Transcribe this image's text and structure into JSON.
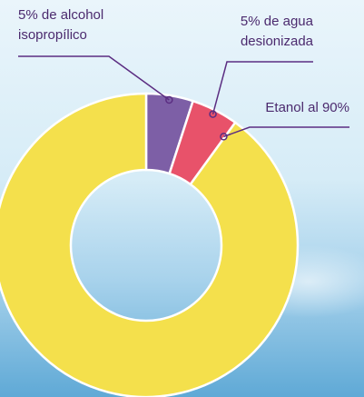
{
  "chart_data": {
    "type": "donut",
    "categories": [
      "5% de alcohol isopropílico",
      "5% de agua desionizada",
      "Etanol al 90%"
    ],
    "values": [
      5,
      5,
      90
    ],
    "colors": [
      "#7d5fa6",
      "#e8526a",
      "#f4e04c"
    ]
  }
}
